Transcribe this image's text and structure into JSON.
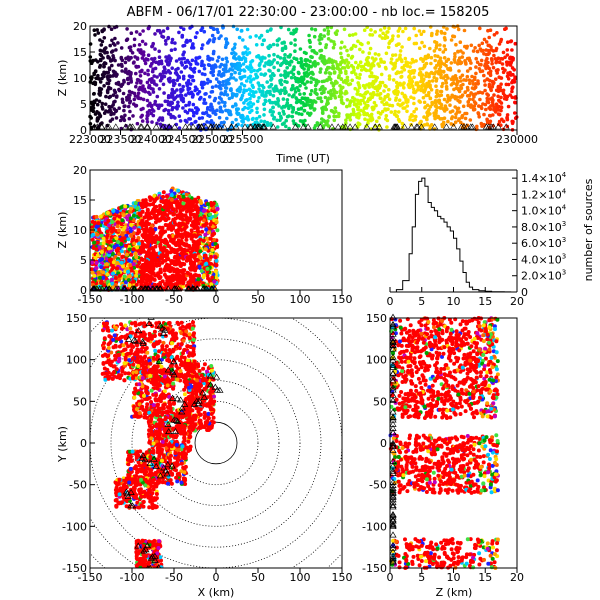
{
  "title": "ABFM - 06/17/01 22:30:00 - 23:00:00 - nb loc.= 158205",
  "chart_data": [
    {
      "id": "time-height",
      "type": "scatter",
      "xlabel": "Time (UT)",
      "ylabel": "Z (km)",
      "xlim": [
        223000,
        230000
      ],
      "ylim": [
        0,
        20
      ],
      "xticks": [
        "223000",
        "223500",
        "224000",
        "224500",
        "225000",
        "225500",
        "230000"
      ],
      "yticks": [
        "0",
        "5",
        "10",
        "15",
        "20"
      ],
      "color_by": "time",
      "color_sequence": [
        "#000000",
        "#5a009a",
        "#2020ff",
        "#00d8ff",
        "#00d040",
        "#c8ff00",
        "#ffe000",
        "#ff8000",
        "#ff0000"
      ]
    },
    {
      "id": "x-z",
      "type": "scatter",
      "xlabel": "",
      "ylabel": "Z (km)",
      "xlim": [
        -150,
        150
      ],
      "ylim": [
        0,
        20
      ],
      "xticks": [
        "-150",
        "-100",
        "-50",
        "0",
        "50",
        "100",
        "150"
      ],
      "yticks": [
        "0",
        "5",
        "10",
        "15",
        "20"
      ]
    },
    {
      "id": "height-histogram",
      "type": "line",
      "xlabel": "",
      "ylabel": "number of sources",
      "xlim": [
        0,
        20
      ],
      "ylim": [
        0,
        15000
      ],
      "xticks": [
        "0",
        "5",
        "10",
        "15",
        "20"
      ],
      "ytick_values": [
        0,
        2000,
        4000,
        6000,
        8000,
        10000,
        12000,
        14000
      ],
      "yticks": [
        {
          "mant": "0",
          "exp": ""
        },
        {
          "mant": "2.0×10",
          "exp": "3"
        },
        {
          "mant": "4.0×10",
          "exp": "3"
        },
        {
          "mant": "6.0×10",
          "exp": "3"
        },
        {
          "mant": "8.0×10",
          "exp": "3"
        },
        {
          "mant": "1.0×10",
          "exp": "4"
        },
        {
          "mant": "1.2×10",
          "exp": "4"
        },
        {
          "mant": "1.4×10",
          "exp": "4"
        }
      ],
      "x": [
        0,
        1,
        2,
        3,
        3.5,
        4,
        4.5,
        5,
        5.5,
        6,
        6.5,
        7,
        7.5,
        8,
        8.5,
        9,
        9.5,
        10,
        10.5,
        11,
        11.5,
        12,
        12.5,
        13,
        14,
        15,
        16,
        17,
        18,
        19,
        20
      ],
      "y": [
        0,
        300,
        1400,
        4700,
        8000,
        12000,
        13600,
        14000,
        13000,
        11000,
        10400,
        10000,
        9300,
        9000,
        8600,
        8000,
        7500,
        6600,
        5300,
        3800,
        2400,
        1200,
        600,
        300,
        150,
        80,
        40,
        20,
        10,
        5,
        0
      ]
    },
    {
      "id": "plan-view",
      "type": "scatter",
      "xlabel": "X (km)",
      "ylabel": "Y (km)",
      "xlim": [
        -150,
        150
      ],
      "ylim": [
        -150,
        150
      ],
      "xticks": [
        "-150",
        "-100",
        "-50",
        "0",
        "50",
        "100",
        "150"
      ],
      "yticks": [
        "-150",
        "-100",
        "-50",
        "0",
        "50",
        "100",
        "150"
      ],
      "range_rings_km": [
        25,
        50,
        75,
        100,
        125,
        150,
        175,
        200
      ]
    },
    {
      "id": "z-y",
      "type": "scatter",
      "xlabel": "Z (km)",
      "ylabel": "",
      "xlim": [
        0,
        20
      ],
      "ylim": [
        -150,
        150
      ],
      "xticks": [
        "0",
        "5",
        "10",
        "15",
        "20"
      ],
      "yticks": [
        "-150",
        "-100",
        "-50",
        "0",
        "50",
        "100",
        "150"
      ]
    }
  ]
}
